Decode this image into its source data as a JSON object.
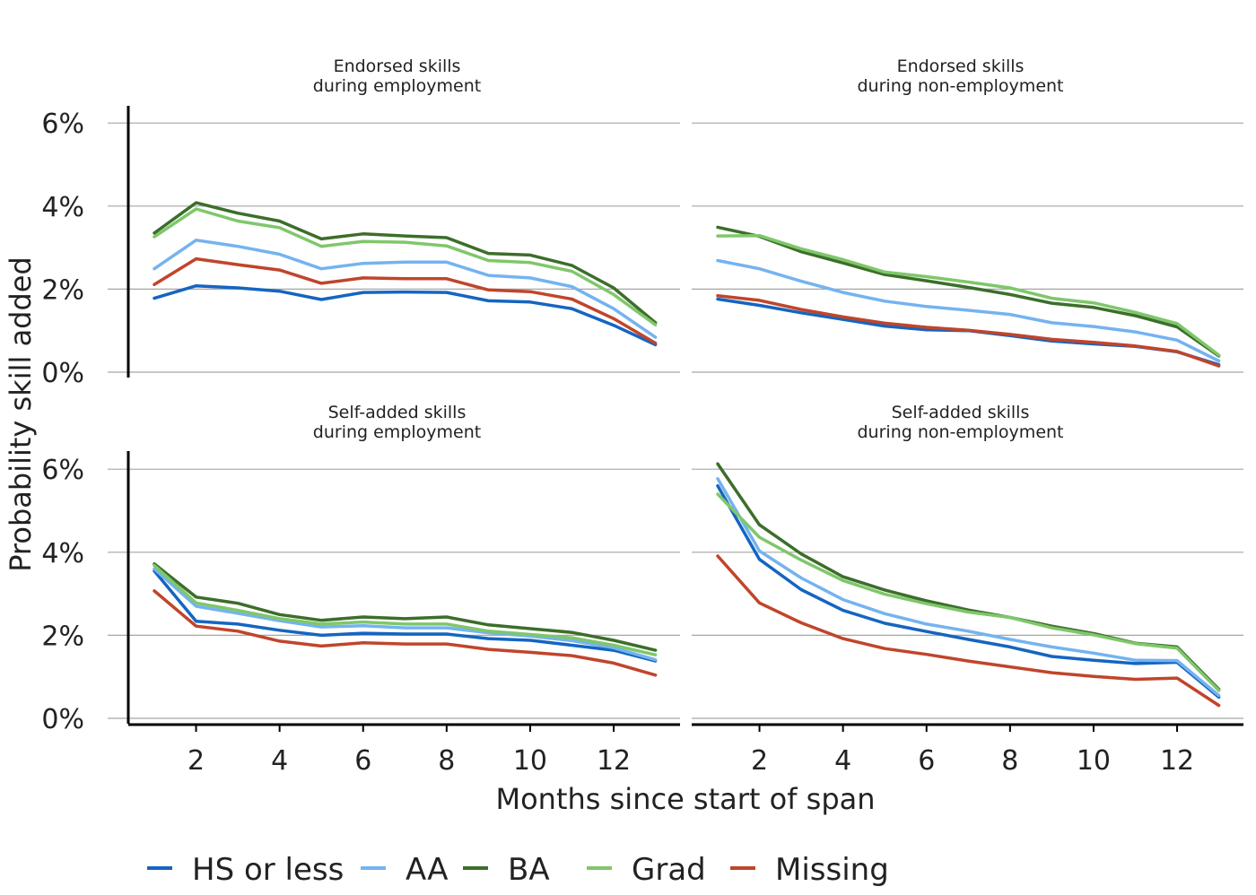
{
  "chart_data": {
    "type": "line",
    "xlabel": "Months since start of span",
    "ylabel": "Probability skill added",
    "x": [
      1,
      2,
      3,
      4,
      5,
      6,
      7,
      8,
      9,
      10,
      11,
      12,
      13
    ],
    "x_ticks": [
      2,
      4,
      6,
      8,
      10,
      12
    ],
    "x_tick_labels": [
      "2",
      "4",
      "6",
      "8",
      "10",
      "12"
    ],
    "ylim": [
      0,
      6
    ],
    "y_ticks": [
      0,
      2,
      4,
      6
    ],
    "y_tick_labels": [
      "0%",
      "2%",
      "4%",
      "6%"
    ],
    "grid": true,
    "legend_position": "bottom",
    "legend": [
      {
        "key": "hs",
        "label": "HS or less",
        "color": "#1565c0"
      },
      {
        "key": "aa",
        "label": "AA",
        "color": "#74b3f0"
      },
      {
        "key": "ba",
        "label": "BA",
        "color": "#3c6e2b"
      },
      {
        "key": "grad",
        "label": "Grad",
        "color": "#7fc76a"
      },
      {
        "key": "missing",
        "label": "Missing",
        "color": "#c0452b"
      }
    ],
    "panels": [
      {
        "title_line1": "Endorsed skills",
        "title_line2": "during employment",
        "series": [
          {
            "key": "hs",
            "values": [
              1.78,
              2.08,
              2.03,
              1.95,
              1.75,
              1.92,
              1.93,
              1.92,
              1.72,
              1.69,
              1.53,
              1.13,
              0.66
            ]
          },
          {
            "key": "aa",
            "values": [
              2.49,
              3.18,
              3.03,
              2.84,
              2.49,
              2.62,
              2.65,
              2.65,
              2.33,
              2.27,
              2.06,
              1.53,
              0.84
            ]
          },
          {
            "key": "ba",
            "values": [
              3.35,
              4.08,
              3.83,
              3.64,
              3.21,
              3.33,
              3.28,
              3.24,
              2.86,
              2.82,
              2.57,
              2.03,
              1.19
            ]
          },
          {
            "key": "grad",
            "values": [
              3.26,
              3.93,
              3.64,
              3.48,
              3.03,
              3.15,
              3.13,
              3.04,
              2.69,
              2.64,
              2.43,
              1.87,
              1.14
            ]
          },
          {
            "key": "missing",
            "values": [
              2.11,
              2.73,
              2.59,
              2.46,
              2.14,
              2.27,
              2.25,
              2.25,
              1.98,
              1.94,
              1.76,
              1.29,
              0.7
            ]
          }
        ]
      },
      {
        "title_line1": "Endorsed skills",
        "title_line2": "during non-employment",
        "series": [
          {
            "key": "hs",
            "values": [
              1.76,
              1.61,
              1.43,
              1.27,
              1.11,
              1.02,
              1.0,
              0.88,
              0.75,
              0.68,
              0.62,
              0.49,
              0.18
            ]
          },
          {
            "key": "aa",
            "values": [
              2.69,
              2.49,
              2.19,
              1.92,
              1.71,
              1.58,
              1.49,
              1.39,
              1.19,
              1.1,
              0.97,
              0.77,
              0.27
            ]
          },
          {
            "key": "ba",
            "values": [
              3.49,
              3.27,
              2.9,
              2.63,
              2.35,
              2.2,
              2.04,
              1.87,
              1.66,
              1.56,
              1.36,
              1.09,
              0.39
            ]
          },
          {
            "key": "grad",
            "values": [
              3.28,
              3.29,
              2.97,
              2.71,
              2.41,
              2.3,
              2.17,
              2.03,
              1.78,
              1.67,
              1.44,
              1.17,
              0.41
            ]
          },
          {
            "key": "missing",
            "values": [
              1.84,
              1.73,
              1.51,
              1.33,
              1.18,
              1.08,
              1.01,
              0.91,
              0.79,
              0.72,
              0.63,
              0.5,
              0.15
            ]
          }
        ]
      },
      {
        "title_line1": "Self-added skills",
        "title_line2": "during employment",
        "series": [
          {
            "key": "hs",
            "values": [
              3.55,
              2.34,
              2.27,
              2.12,
              2.0,
              2.05,
              2.03,
              2.03,
              1.92,
              1.88,
              1.76,
              1.64,
              1.38
            ]
          },
          {
            "key": "aa",
            "values": [
              3.6,
              2.7,
              2.53,
              2.35,
              2.2,
              2.23,
              2.18,
              2.18,
              2.06,
              1.98,
              1.87,
              1.7,
              1.41
            ]
          },
          {
            "key": "ba",
            "values": [
              3.72,
              2.92,
              2.77,
              2.5,
              2.36,
              2.44,
              2.4,
              2.44,
              2.25,
              2.16,
              2.07,
              1.88,
              1.64
            ]
          },
          {
            "key": "grad",
            "values": [
              3.68,
              2.78,
              2.6,
              2.4,
              2.27,
              2.32,
              2.27,
              2.27,
              2.1,
              2.02,
              1.94,
              1.76,
              1.53
            ]
          },
          {
            "key": "missing",
            "values": [
              3.07,
              2.22,
              2.1,
              1.86,
              1.74,
              1.82,
              1.79,
              1.79,
              1.66,
              1.59,
              1.51,
              1.33,
              1.04
            ]
          }
        ]
      },
      {
        "title_line1": "Self-added skills",
        "title_line2": "during non-employment",
        "series": [
          {
            "key": "hs",
            "values": [
              5.6,
              3.83,
              3.1,
              2.6,
              2.29,
              2.09,
              1.9,
              1.72,
              1.49,
              1.4,
              1.32,
              1.35,
              0.51
            ]
          },
          {
            "key": "aa",
            "values": [
              5.77,
              4.03,
              3.38,
              2.86,
              2.52,
              2.27,
              2.1,
              1.9,
              1.72,
              1.57,
              1.4,
              1.39,
              0.55
            ]
          },
          {
            "key": "ba",
            "values": [
              6.13,
              4.66,
              3.96,
              3.41,
              3.09,
              2.83,
              2.61,
              2.43,
              2.22,
              2.04,
              1.81,
              1.72,
              0.7
            ]
          },
          {
            "key": "grad",
            "values": [
              5.4,
              4.36,
              3.81,
              3.32,
              2.99,
              2.76,
              2.56,
              2.43,
              2.18,
              2.01,
              1.8,
              1.69,
              0.67
            ]
          },
          {
            "key": "missing",
            "values": [
              3.91,
              2.78,
              2.3,
              1.92,
              1.68,
              1.54,
              1.38,
              1.24,
              1.1,
              1.01,
              0.94,
              0.97,
              0.31
            ]
          }
        ]
      }
    ]
  }
}
